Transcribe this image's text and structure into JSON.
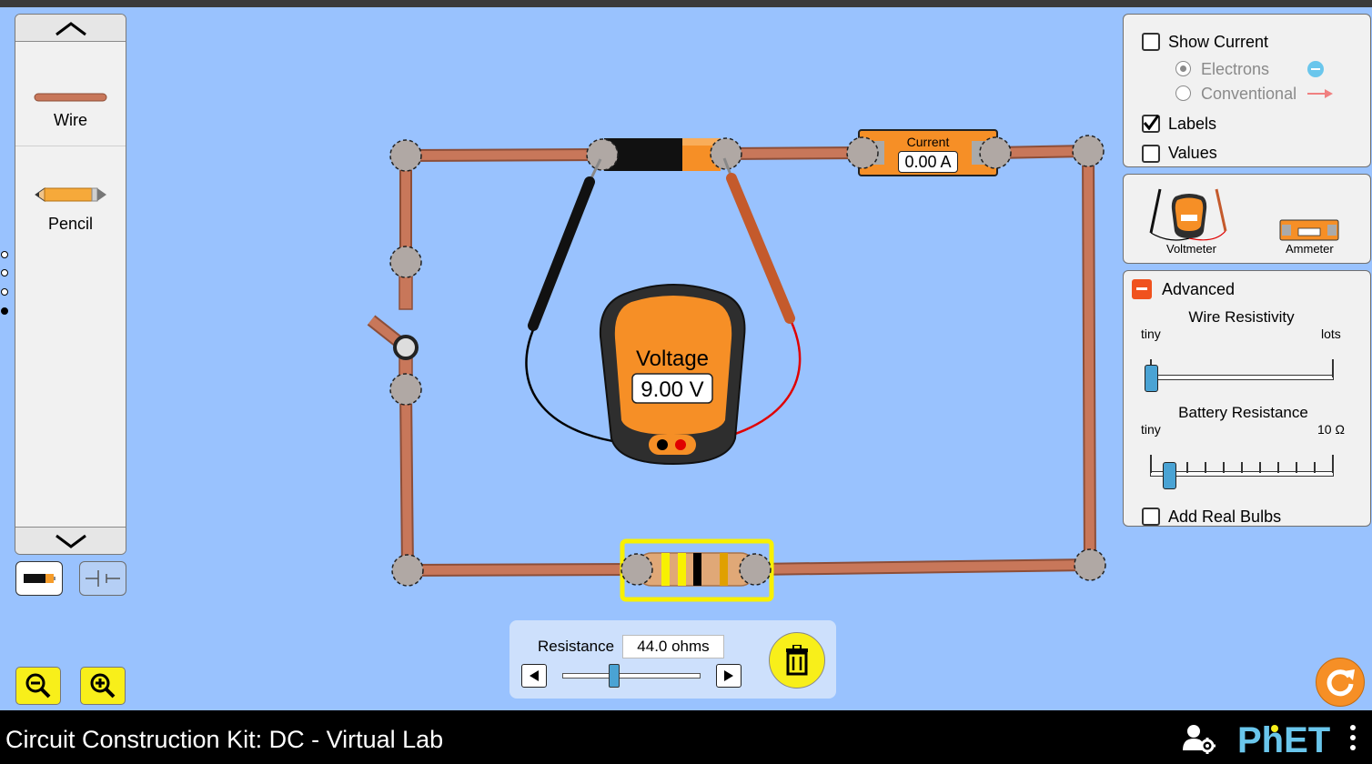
{
  "app": {
    "title": "Circuit Construction Kit: DC - Virtual Lab"
  },
  "toolbox": {
    "items": [
      {
        "label": "Wire"
      },
      {
        "label": "Pencil"
      }
    ]
  },
  "display_panel": {
    "show_current_label": "Show Current",
    "show_current_checked": false,
    "electrons_label": "Electrons",
    "electrons_selected": true,
    "conventional_label": "Conventional",
    "labels_label": "Labels",
    "labels_checked": true,
    "values_label": "Values",
    "values_checked": false
  },
  "meters_panel": {
    "voltmeter_label": "Voltmeter",
    "ammeter_label": "Ammeter"
  },
  "advanced_panel": {
    "title": "Advanced",
    "wire_resistivity_label": "Wire Resistivity",
    "wire_min_label": "tiny",
    "wire_max_label": "lots",
    "wire_resistivity_level": 0.0,
    "battery_resistance_label": "Battery Resistance",
    "battery_min_label": "tiny",
    "battery_max_label": "10 Ω",
    "battery_resistance_level": 0.1,
    "real_bulbs_label": "Add Real Bulbs",
    "real_bulbs_checked": false
  },
  "circuit": {
    "ammeter_title": "Current",
    "ammeter_reading": "0.00 A",
    "voltmeter_title": "Voltage",
    "voltmeter_reading": "9.00 V",
    "switch_state": "open"
  },
  "resistor_control": {
    "label": "Resistance",
    "value": "44.0 ohms",
    "slider_level": 0.37
  },
  "colors": {
    "canvas_bg": "#99c2fe",
    "wire": "#c8775a",
    "meter_orange": "#f68f26",
    "selection_yellow": "#f8f000",
    "zoom_yellow": "#f8ef1a",
    "phet_blue": "#6ac6ec"
  }
}
